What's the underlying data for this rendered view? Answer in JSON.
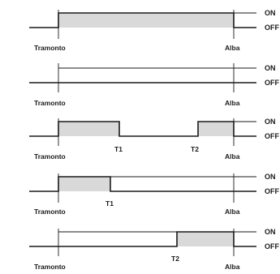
{
  "level_labels": {
    "on": "ON",
    "off": "OFF"
  },
  "colors": {
    "line": "#1a1a1a",
    "on_fill": "#d9d9d9",
    "background": "#ffffff"
  },
  "diagrams": [
    {
      "left_label": "Tramonto",
      "right_label": "Alba",
      "markers": [],
      "on_periods": [
        [
          "Tramonto",
          "Alba"
        ]
      ]
    },
    {
      "left_label": "Tramonto",
      "right_label": "Alba",
      "markers": [],
      "on_periods": []
    },
    {
      "left_label": "Tramonto",
      "right_label": "Alba",
      "markers": [
        {
          "label": "T1"
        },
        {
          "label": "T2"
        }
      ],
      "on_periods": [
        [
          "Tramonto",
          "T1"
        ],
        [
          "T2",
          "Alba"
        ]
      ]
    },
    {
      "left_label": "Tramonto",
      "right_label": "Alba",
      "markers": [
        {
          "label": "T1"
        }
      ],
      "on_periods": [
        [
          "Tramonto",
          "T1"
        ]
      ]
    },
    {
      "left_label": "Tramonto",
      "right_label": "Alba",
      "markers": [
        {
          "label": "T2"
        }
      ],
      "on_periods": [
        [
          "T2",
          "Alba"
        ]
      ]
    }
  ]
}
